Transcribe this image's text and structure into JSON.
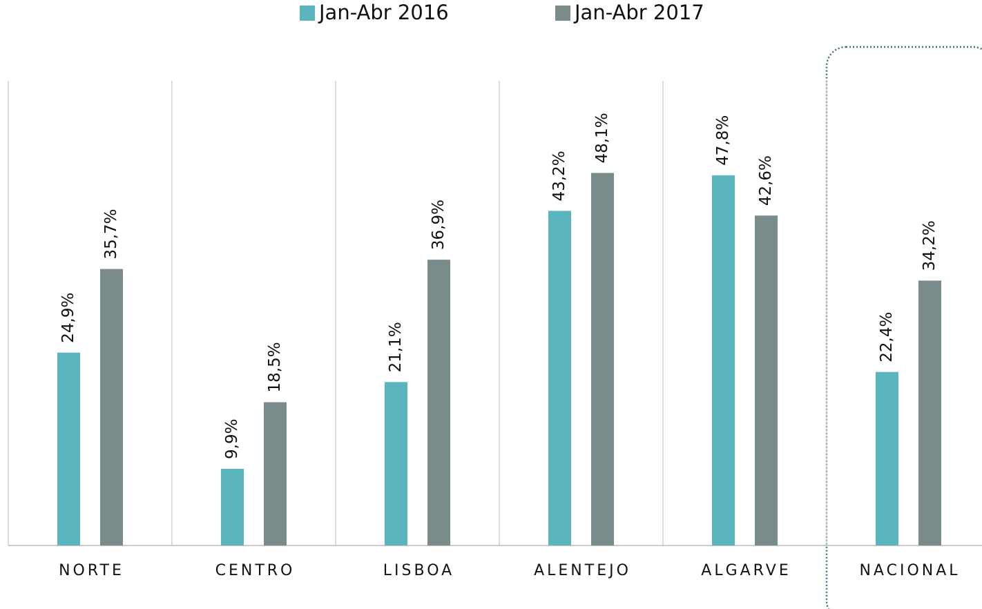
{
  "chart_data": {
    "type": "bar",
    "categories": [
      "NORTE",
      "CENTRO",
      "LISBOA",
      "ALENTEJO",
      "ALGARVE",
      "NACIONAL"
    ],
    "series": [
      {
        "name": "Jan-Abr 2016",
        "color": "#5ab5bf",
        "values": [
          24.9,
          9.9,
          21.1,
          43.2,
          47.8,
          22.4
        ],
        "value_labels": [
          "24,9%",
          "9,9%",
          "21,1%",
          "43,2%",
          "47,8%",
          "22,4%"
        ]
      },
      {
        "name": "Jan-Abr 2017",
        "color": "#7a8b8c",
        "values": [
          35.7,
          18.5,
          36.9,
          48.1,
          42.6,
          34.2
        ],
        "value_labels": [
          "35,7%",
          "18,5%",
          "36,9%",
          "48,1%",
          "42,6%",
          "34,2%"
        ]
      }
    ],
    "ylim": [
      0,
      60
    ],
    "legend": "top"
  }
}
